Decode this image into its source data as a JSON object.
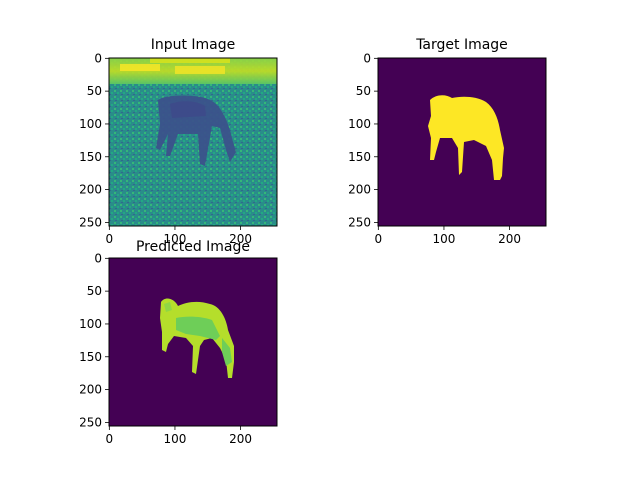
{
  "chart_data": [
    {
      "type": "image",
      "title": "Input Image",
      "xlim": [
        0,
        255
      ],
      "ylim": [
        255,
        0
      ],
      "x_ticks": [
        "0",
        "100",
        "200"
      ],
      "y_ticks": [
        "0",
        "50",
        "100",
        "150",
        "200",
        "250"
      ],
      "image_content": "grayscale photo rendered in viridis: brown horse grazing in a grassy field with trees/bright sky band at the top",
      "colormap": "viridis"
    },
    {
      "type": "image",
      "title": "Target Image",
      "xlim": [
        0,
        255
      ],
      "ylim": [
        255,
        0
      ],
      "x_ticks": [
        "0",
        "100",
        "200"
      ],
      "y_ticks": [
        "0",
        "50",
        "100",
        "150",
        "200",
        "250"
      ],
      "image_content": "binary segmentation mask: horse silhouette (yellow) on dark purple background",
      "colormap": "viridis",
      "colors": {
        "background": "#440154",
        "foreground": "#fde725"
      }
    },
    {
      "type": "image",
      "title": "Predicted Image",
      "xlim": [
        0,
        255
      ],
      "ylim": [
        255,
        0
      ],
      "x_ticks": [
        "0",
        "100",
        "200"
      ],
      "y_ticks": [
        "0",
        "50",
        "100",
        "150",
        "200",
        "250"
      ],
      "image_content": "predicted segmentation: horse region in yellow-green/green tones on dark purple background",
      "colormap": "viridis",
      "colors": {
        "background": "#440154",
        "foreground_main": "#b5de2b",
        "foreground_secondary": "#6ece58"
      }
    }
  ]
}
